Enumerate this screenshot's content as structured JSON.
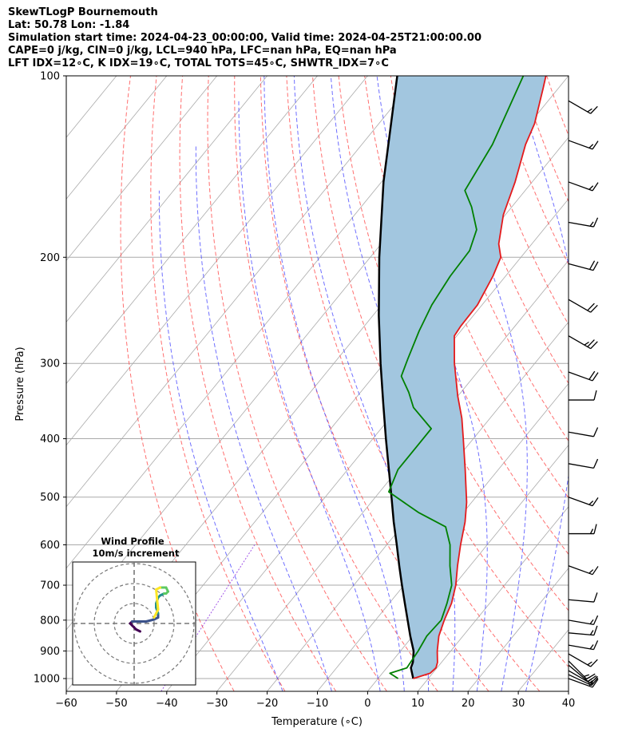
{
  "title_lines": [
    "SkewTLogP Bournemouth",
    "Lat: 50.78   Lon: -1.84",
    "Simulation start time: 2024-04-23_00:00:00, Valid time: 2024-04-25T21:00:00.00",
    "CAPE=0 j/kg, CIN=0 j/kg, LCL=940 hPa, LFC=nan hPa, EQ=nan hPa",
    "LFT IDX=12∘C, K IDX=19∘C, TOTAL TOTS=45∘C, SHWTR_IDX=7∘C"
  ],
  "chart_data": {
    "type": "skewt-logp",
    "xlabel": "Temperature (∘C)",
    "ylabel": "Pressure (hPa)",
    "xlim": [
      -60,
      40
    ],
    "ylim": [
      1050,
      100
    ],
    "x_ticks": [
      -60,
      -50,
      -40,
      -30,
      -20,
      -10,
      0,
      10,
      20,
      30,
      40
    ],
    "x_tick_labels": [
      "−60",
      "−50",
      "−40",
      "−30",
      "−20",
      "−10",
      "0",
      "10",
      "20",
      "30",
      "40"
    ],
    "y_ticks": [
      1000,
      900,
      800,
      700,
      600,
      500,
      400,
      300,
      200,
      100
    ],
    "y_tick_labels": [
      "1000",
      "900",
      "800",
      "700",
      "600",
      "500",
      "400",
      "300",
      "200",
      "100"
    ],
    "grid": true,
    "colors": {
      "temperature": "#e41a1c",
      "dewpoint": "#008000",
      "parcel": "#000000",
      "shading": "#a2c6df",
      "isotherm": "#aaaaaa",
      "dry_adiabat": "#ff4b4b",
      "moist_adiabat": "#4b4bff",
      "mixing_ratio": "#8a2be2"
    },
    "temperature_profile": [
      {
        "p": 1000,
        "t": 7.0
      },
      {
        "p": 980,
        "t": 9.5
      },
      {
        "p": 960,
        "t": 9.8
      },
      {
        "p": 940,
        "t": 9.2
      },
      {
        "p": 900,
        "t": 7.3
      },
      {
        "p": 850,
        "t": 5.2
      },
      {
        "p": 800,
        "t": 3.7
      },
      {
        "p": 750,
        "t": 2.4
      },
      {
        "p": 700,
        "t": 0.3
      },
      {
        "p": 650,
        "t": -2.5
      },
      {
        "p": 600,
        "t": -5.3
      },
      {
        "p": 550,
        "t": -8.1
      },
      {
        "p": 510,
        "t": -11.0
      },
      {
        "p": 450,
        "t": -16.6
      },
      {
        "p": 400,
        "t": -22.0
      },
      {
        "p": 370,
        "t": -25.6
      },
      {
        "p": 340,
        "t": -30.0
      },
      {
        "p": 300,
        "t": -36.0
      },
      {
        "p": 270,
        "t": -40.5
      },
      {
        "p": 260,
        "t": -40.8
      },
      {
        "p": 240,
        "t": -40.9
      },
      {
        "p": 215,
        "t": -42.5
      },
      {
        "p": 200,
        "t": -44.0
      },
      {
        "p": 190,
        "t": -46.6
      },
      {
        "p": 170,
        "t": -50.4
      },
      {
        "p": 150,
        "t": -53.4
      },
      {
        "p": 130,
        "t": -57.4
      },
      {
        "p": 120,
        "t": -59.0
      },
      {
        "p": 105,
        "t": -63.0
      },
      {
        "p": 100,
        "t": -64.5
      }
    ],
    "dewpoint_profile": [
      {
        "p": 1000,
        "t": 4.0
      },
      {
        "p": 980,
        "t": 1.5
      },
      {
        "p": 960,
        "t": 4.0
      },
      {
        "p": 900,
        "t": 3.5
      },
      {
        "p": 850,
        "t": 2.8
      },
      {
        "p": 800,
        "t": 3.1
      },
      {
        "p": 750,
        "t": 1.5
      },
      {
        "p": 700,
        "t": -0.5
      },
      {
        "p": 650,
        "t": -4.0
      },
      {
        "p": 600,
        "t": -7.4
      },
      {
        "p": 560,
        "t": -11.2
      },
      {
        "p": 530,
        "t": -19.0
      },
      {
        "p": 490,
        "t": -28.2
      },
      {
        "p": 450,
        "t": -30.0
      },
      {
        "p": 410,
        "t": -30.0
      },
      {
        "p": 385,
        "t": -30.0
      },
      {
        "p": 355,
        "t": -37.0
      },
      {
        "p": 335,
        "t": -40.4
      },
      {
        "p": 315,
        "t": -44.5
      },
      {
        "p": 295,
        "t": -46.0
      },
      {
        "p": 265,
        "t": -48.3
      },
      {
        "p": 240,
        "t": -50.0
      },
      {
        "p": 215,
        "t": -51.0
      },
      {
        "p": 195,
        "t": -51.3
      },
      {
        "p": 180,
        "t": -53.3
      },
      {
        "p": 165,
        "t": -58.0
      },
      {
        "p": 155,
        "t": -62.0
      },
      {
        "p": 130,
        "t": -64.0
      },
      {
        "p": 100,
        "t": -69.0
      }
    ],
    "parcel_profile": [
      {
        "p": 1000,
        "t": 7.0
      },
      {
        "p": 960,
        "t": 4.8
      },
      {
        "p": 940,
        "t": 4.3
      },
      {
        "p": 900,
        "t": 2.6
      },
      {
        "p": 850,
        "t": -0.5
      },
      {
        "p": 800,
        "t": -3.6
      },
      {
        "p": 750,
        "t": -6.9
      },
      {
        "p": 700,
        "t": -10.4
      },
      {
        "p": 650,
        "t": -14.1
      },
      {
        "p": 600,
        "t": -18.0
      },
      {
        "p": 550,
        "t": -22.3
      },
      {
        "p": 500,
        "t": -26.8
      },
      {
        "p": 450,
        "t": -31.8
      },
      {
        "p": 400,
        "t": -37.4
      },
      {
        "p": 350,
        "t": -43.6
      },
      {
        "p": 300,
        "t": -50.7
      },
      {
        "p": 250,
        "t": -58.8
      },
      {
        "p": 200,
        "t": -68.2
      },
      {
        "p": 150,
        "t": -79.6
      },
      {
        "p": 100,
        "t": -94.1
      }
    ],
    "wind_barbs": [
      {
        "p": 1000,
        "speed_kt": 15,
        "dir": 290
      },
      {
        "p": 985,
        "speed_kt": 15,
        "dir": 295
      },
      {
        "p": 970,
        "speed_kt": 15,
        "dir": 300
      },
      {
        "p": 950,
        "speed_kt": 15,
        "dir": 310
      },
      {
        "p": 935,
        "speed_kt": 15,
        "dir": 315
      },
      {
        "p": 910,
        "speed_kt": 15,
        "dir": 300
      },
      {
        "p": 880,
        "speed_kt": 15,
        "dir": 280
      },
      {
        "p": 840,
        "speed_kt": 15,
        "dir": 275
      },
      {
        "p": 800,
        "speed_kt": 15,
        "dir": 280
      },
      {
        "p": 740,
        "speed_kt": 10,
        "dir": 275
      },
      {
        "p": 650,
        "speed_kt": 15,
        "dir": 290
      },
      {
        "p": 575,
        "speed_kt": 15,
        "dir": 270
      },
      {
        "p": 500,
        "speed_kt": 15,
        "dir": 290
      },
      {
        "p": 440,
        "speed_kt": 10,
        "dir": 280
      },
      {
        "p": 390,
        "speed_kt": 10,
        "dir": 280
      },
      {
        "p": 345,
        "speed_kt": 10,
        "dir": 270
      },
      {
        "p": 310,
        "speed_kt": 20,
        "dir": 290
      },
      {
        "p": 270,
        "speed_kt": 25,
        "dir": 300
      },
      {
        "p": 235,
        "speed_kt": 20,
        "dir": 300
      },
      {
        "p": 205,
        "speed_kt": 20,
        "dir": 285
      },
      {
        "p": 175,
        "speed_kt": 15,
        "dir": 280
      },
      {
        "p": 150,
        "speed_kt": 15,
        "dir": 290
      },
      {
        "p": 128,
        "speed_kt": 15,
        "dir": 290
      },
      {
        "p": 110,
        "speed_kt": 15,
        "dir": 300
      }
    ],
    "hodograph": {
      "title_line1": "Wind Profile",
      "title_line2": "10m/s increment",
      "rings": [
        10,
        20,
        30
      ],
      "points_uv": [
        [
          3,
          -4
        ],
        [
          1,
          -3
        ],
        [
          0,
          -2
        ],
        [
          -1,
          -1
        ],
        [
          -2,
          0
        ],
        [
          -1,
          1
        ],
        [
          2,
          1
        ],
        [
          6,
          1
        ],
        [
          10,
          2
        ],
        [
          12,
          3
        ],
        [
          12,
          5
        ],
        [
          11,
          8
        ],
        [
          11,
          10
        ],
        [
          12,
          13
        ],
        [
          13,
          14
        ],
        [
          15,
          15
        ],
        [
          16,
          15
        ],
        [
          17,
          16
        ],
        [
          16,
          18
        ],
        [
          15,
          18
        ],
        [
          13,
          18
        ],
        [
          11,
          17
        ],
        [
          12,
          7
        ],
        [
          11,
          5
        ],
        [
          10,
          3
        ]
      ]
    }
  }
}
